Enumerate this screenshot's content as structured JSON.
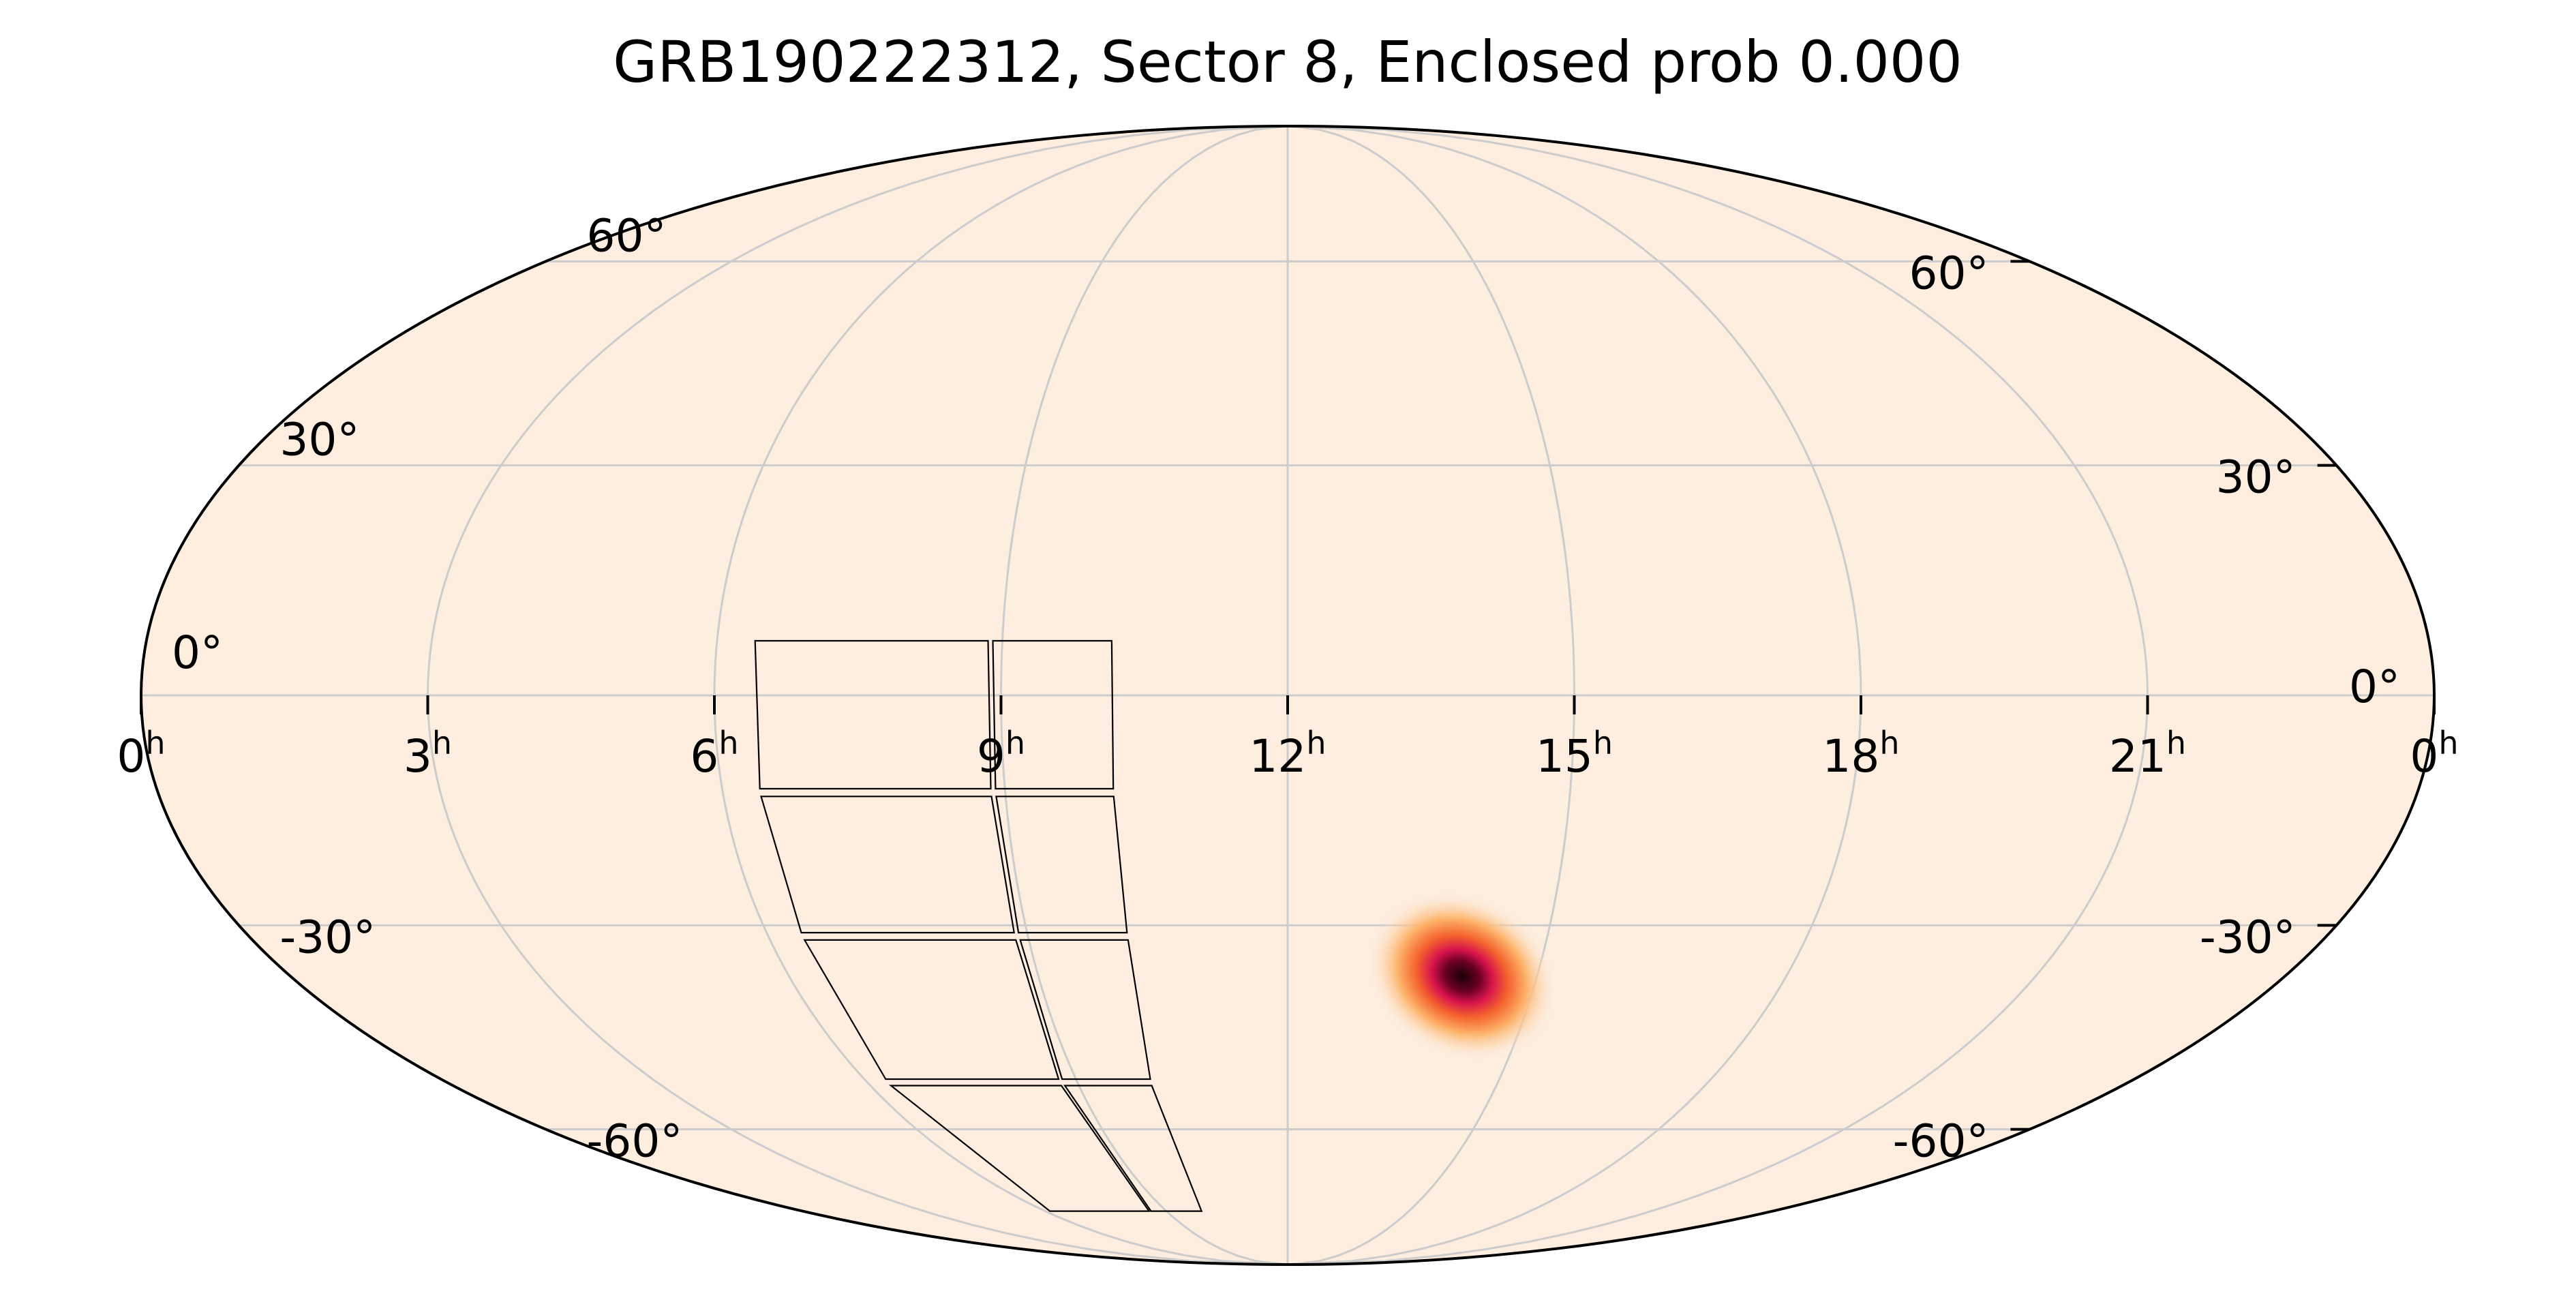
{
  "chart_data": {
    "type": "heatmap",
    "title": "GRB190222312, Sector 8, Enclosed prob 0.000",
    "projection": "mollweide",
    "ra_ticks": [
      {
        "hours": 24,
        "text": "0",
        "sup": "h"
      },
      {
        "hours": 21,
        "text": "21",
        "sup": "h"
      },
      {
        "hours": 18,
        "text": "18",
        "sup": "h"
      },
      {
        "hours": 15,
        "text": "15",
        "sup": "h"
      },
      {
        "hours": 12,
        "text": "12",
        "sup": "h"
      },
      {
        "hours": 9,
        "text": "9",
        "sup": "h"
      },
      {
        "hours": 6,
        "text": "6",
        "sup": "h"
      },
      {
        "hours": 3,
        "text": "3",
        "sup": "h"
      },
      {
        "hours": 0,
        "text": "0",
        "sup": "h"
      }
    ],
    "dec_gridlines": [
      60,
      30,
      0,
      -30,
      -60
    ],
    "dec_labels_left": [
      {
        "dec": 60,
        "text": "60°"
      },
      {
        "dec": 30,
        "text": "30°"
      },
      {
        "dec": 0,
        "text": "0°"
      },
      {
        "dec": -30,
        "text": "-30°"
      },
      {
        "dec": -60,
        "text": "-60°"
      }
    ],
    "dec_labels_right": [
      {
        "dec": 60,
        "text": "60°"
      },
      {
        "dec": 30,
        "text": "30°"
      },
      {
        "dec": 0,
        "text": "0°"
      },
      {
        "dec": -30,
        "text": "-30°"
      },
      {
        "dec": -60,
        "text": "-60°"
      }
    ],
    "grid": true,
    "background_color": "#fdeee0",
    "probability_blob": {
      "ra_hours": 14.1,
      "dec": -37,
      "colormap": [
        "#fdeee0",
        "#fdb36a",
        "#f4612d",
        "#d8144d",
        "#1a0006"
      ]
    },
    "sector_footprint": {
      "sector": 8,
      "columns": [
        {
          "ra_west_hours": 10.15,
          "ra_east_hours": 8.9
        },
        {
          "ra_west_hours": 8.85,
          "ra_east_hours": 6.4
        }
      ],
      "cameras_dec_bands": [
        [
          7,
          -12
        ],
        [
          -13,
          -31
        ],
        [
          -32,
          -52
        ],
        [
          -53,
          -75
        ]
      ]
    }
  }
}
